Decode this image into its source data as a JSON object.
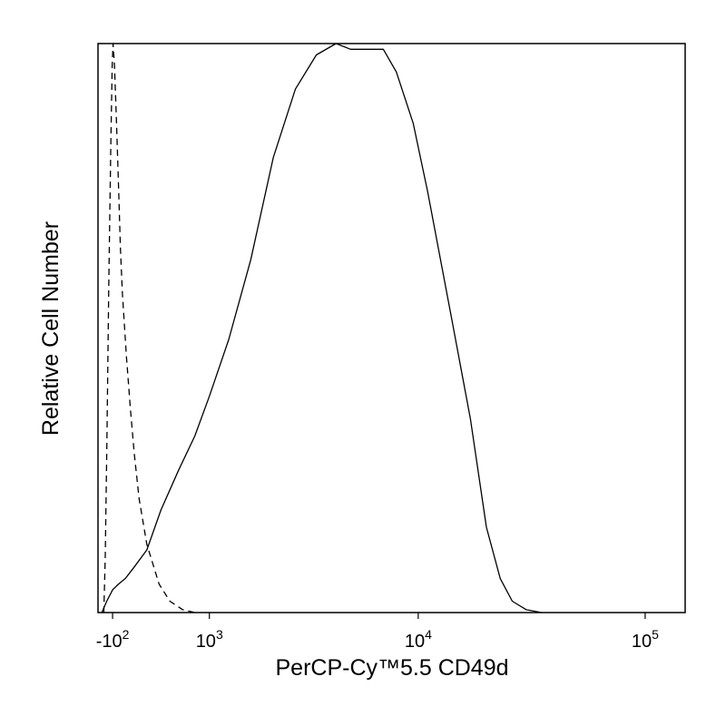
{
  "chart_data": {
    "type": "line",
    "title": "",
    "xlabel": "PerCP-Cy™5.5  CD49d",
    "ylabel": "Relative Cell Number",
    "x_scale": "biexponential",
    "grid": false,
    "legend": "none",
    "xlim": [
      -250,
      150000
    ],
    "ylim": [
      0,
      100
    ],
    "x_ticks": [
      {
        "value": -100,
        "base": "-10",
        "exp": "2"
      },
      {
        "value": 1000,
        "base": "10",
        "exp": "3"
      },
      {
        "value": 10000,
        "base": "10",
        "exp": "4"
      },
      {
        "value": 100000,
        "base": "10",
        "exp": "5"
      }
    ],
    "series": [
      {
        "style": "dashed",
        "color": "#000000",
        "points": [
          [
            -190,
            0
          ],
          [
            -175,
            10
          ],
          [
            -158,
            30
          ],
          [
            -138,
            58
          ],
          [
            -118,
            82
          ],
          [
            -104,
            96
          ],
          [
            -95,
            100
          ],
          [
            -80,
            96
          ],
          [
            -60,
            86
          ],
          [
            -40,
            75
          ],
          [
            -20,
            64
          ],
          [
            0,
            56
          ],
          [
            40,
            45
          ],
          [
            80,
            36
          ],
          [
            120,
            28
          ],
          [
            170,
            20
          ],
          [
            250,
            12
          ],
          [
            380,
            5
          ],
          [
            500,
            2
          ],
          [
            650,
            0.5
          ],
          [
            800,
            0
          ]
        ]
      },
      {
        "style": "solid",
        "color": "#000000",
        "points": [
          [
            -210,
            0
          ],
          [
            -160,
            2
          ],
          [
            -100,
            4
          ],
          [
            -40,
            5
          ],
          [
            30,
            6
          ],
          [
            120,
            8
          ],
          [
            250,
            11
          ],
          [
            400,
            18
          ],
          [
            600,
            25
          ],
          [
            800,
            31
          ],
          [
            1000,
            38
          ],
          [
            1300,
            48
          ],
          [
            1700,
            62
          ],
          [
            2200,
            80
          ],
          [
            2800,
            92
          ],
          [
            3500,
            98
          ],
          [
            4300,
            100
          ],
          [
            5000,
            99
          ],
          [
            6000,
            99
          ],
          [
            7000,
            99
          ],
          [
            8000,
            95
          ],
          [
            9500,
            86
          ],
          [
            11000,
            74
          ],
          [
            14000,
            52
          ],
          [
            17000,
            34
          ],
          [
            20000,
            15
          ],
          [
            23000,
            6
          ],
          [
            26000,
            2
          ],
          [
            30000,
            0.5
          ],
          [
            35000,
            0
          ]
        ]
      }
    ]
  }
}
